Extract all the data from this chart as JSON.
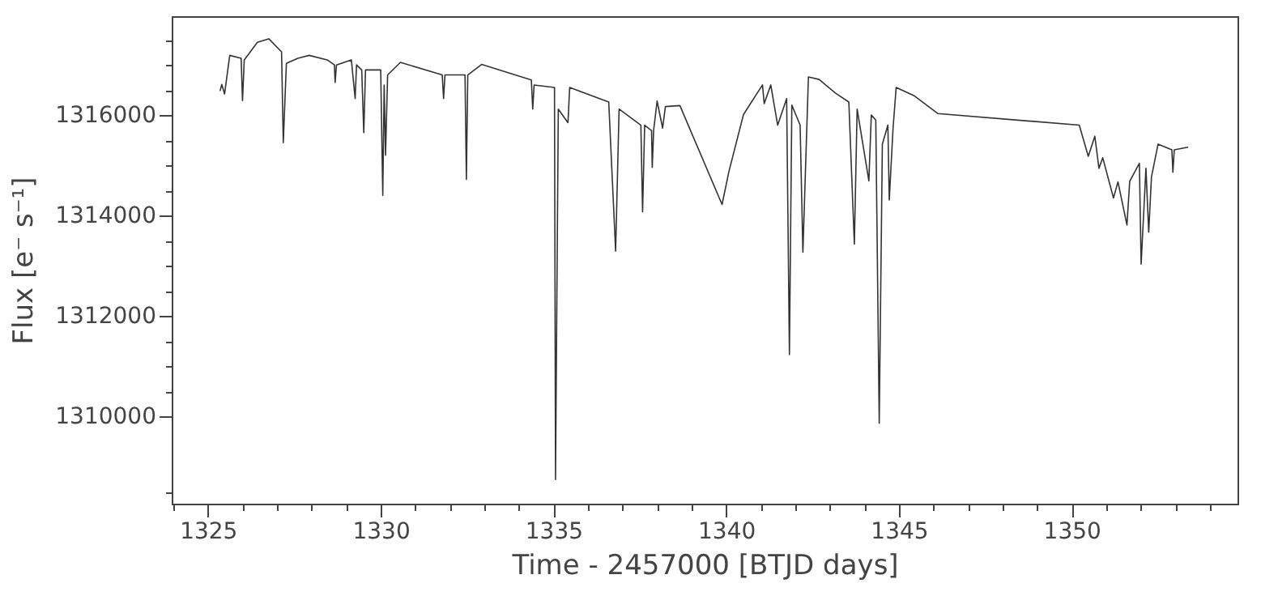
{
  "chart_data": {
    "type": "line",
    "xlabel": "Time - 2457000 [BTJD days]",
    "ylabel": "Flux [e⁻ s⁻¹]",
    "xlim": [
      1323.95,
      1354.8
    ],
    "ylim": [
      1308260,
      1317970
    ],
    "xticks": [
      {
        "value": 1324,
        "label": null
      },
      1325,
      {
        "value": 1326,
        "label": null
      },
      {
        "value": 1327,
        "label": null
      },
      {
        "value": 1328,
        "label": null
      },
      {
        "value": 1329,
        "label": null
      },
      1330,
      {
        "value": 1331,
        "label": null
      },
      {
        "value": 1332,
        "label": null
      },
      {
        "value": 1333,
        "label": null
      },
      {
        "value": 1334,
        "label": null
      },
      1335,
      {
        "value": 1336,
        "label": null
      },
      {
        "value": 1337,
        "label": null
      },
      {
        "value": 1338,
        "label": null
      },
      {
        "value": 1339,
        "label": null
      },
      1340,
      {
        "value": 1341,
        "label": null
      },
      {
        "value": 1342,
        "label": null
      },
      {
        "value": 1343,
        "label": null
      },
      {
        "value": 1344,
        "label": null
      },
      1345,
      {
        "value": 1346,
        "label": null
      },
      {
        "value": 1347,
        "label": null
      },
      {
        "value": 1348,
        "label": null
      },
      {
        "value": 1349,
        "label": null
      },
      1350,
      {
        "value": 1351,
        "label": null
      },
      {
        "value": 1352,
        "label": null
      },
      {
        "value": 1353,
        "label": null
      },
      {
        "value": 1354,
        "label": null
      }
    ],
    "yticks": [
      {
        "value": 1308500,
        "label": null
      },
      1310000,
      {
        "value": 1310500,
        "label": null
      },
      {
        "value": 1311000,
        "label": null
      },
      {
        "value": 1311500,
        "label": null
      },
      1312000,
      {
        "value": 1312500,
        "label": null
      },
      {
        "value": 1313000,
        "label": null
      },
      {
        "value": 1313500,
        "label": null
      },
      1314000,
      {
        "value": 1314500,
        "label": null
      },
      {
        "value": 1315000,
        "label": null
      },
      {
        "value": 1315500,
        "label": null
      },
      1316000,
      {
        "value": 1316500,
        "label": null
      },
      {
        "value": 1317000,
        "label": null
      },
      {
        "value": 1317500,
        "label": null
      }
    ],
    "grid": false,
    "marker": "none",
    "line_style": "solid",
    "series": [
      {
        "color": "#333333",
        "x": [
          1325.35,
          1325.4,
          1325.48,
          1325.63,
          1325.96,
          1326.0,
          1326.05,
          1326.43,
          1326.76,
          1327.13,
          1327.18,
          1327.27,
          1327.6,
          1327.93,
          1328.45,
          1328.66,
          1328.68,
          1328.72,
          1329.15,
          1329.26,
          1329.3,
          1329.45,
          1329.51,
          1329.56,
          1330.0,
          1330.06,
          1330.1,
          1330.14,
          1330.2,
          1330.57,
          1331.78,
          1331.82,
          1331.86,
          1332.44,
          1332.48,
          1332.52,
          1332.92,
          1334.36,
          1334.4,
          1334.44,
          1335.03,
          1335.06,
          1335.14,
          1335.42,
          1335.47,
          1336.6,
          1336.8,
          1336.9,
          1337.53,
          1337.58,
          1337.64,
          1337.84,
          1337.86,
          1337.9,
          1338.0,
          1338.16,
          1338.24,
          1338.66,
          1339.88,
          1340.08,
          1340.5,
          1341.05,
          1341.1,
          1341.29,
          1341.49,
          1341.75,
          1341.83,
          1341.9,
          1342.14,
          1342.22,
          1342.38,
          1342.69,
          1343.16,
          1343.55,
          1343.71,
          1343.79,
          1344.13,
          1344.2,
          1344.33,
          1344.43,
          1344.52,
          1344.68,
          1344.72,
          1344.83,
          1344.92,
          1345.43,
          1346.13,
          1350.22,
          1350.48,
          1350.67,
          1350.79,
          1350.9,
          1351.21,
          1351.34,
          1351.6,
          1351.68,
          1351.96,
          1352.01,
          1352.15,
          1352.23,
          1352.31,
          1352.5,
          1352.9,
          1352.93,
          1352.97,
          1353.37
        ],
        "values": [
          1316480,
          1316610,
          1316420,
          1317190,
          1317130,
          1316290,
          1317100,
          1317450,
          1317520,
          1317260,
          1315450,
          1317030,
          1317130,
          1317190,
          1317100,
          1317000,
          1316650,
          1317000,
          1317100,
          1316330,
          1317000,
          1316900,
          1315650,
          1316900,
          1316900,
          1314400,
          1316600,
          1315200,
          1316800,
          1317050,
          1316800,
          1316330,
          1316800,
          1316800,
          1314720,
          1316800,
          1317010,
          1316700,
          1316120,
          1316600,
          1316550,
          1308740,
          1316120,
          1315850,
          1316550,
          1316260,
          1313290,
          1316120,
          1315800,
          1314070,
          1315800,
          1315690,
          1314960,
          1315700,
          1316280,
          1315740,
          1316170,
          1316190,
          1314220,
          1314880,
          1316010,
          1316600,
          1316230,
          1316600,
          1315800,
          1316330,
          1311230,
          1316200,
          1315800,
          1313270,
          1316760,
          1316710,
          1316440,
          1316260,
          1313430,
          1316120,
          1314690,
          1316000,
          1315900,
          1309860,
          1315420,
          1315800,
          1314310,
          1315740,
          1316550,
          1316390,
          1316030,
          1315800,
          1315180,
          1315580,
          1314940,
          1315150,
          1314350,
          1314670,
          1313810,
          1314680,
          1315040,
          1313030,
          1314940,
          1313670,
          1314770,
          1315420,
          1315310,
          1314860,
          1315310,
          1315360
        ]
      }
    ]
  }
}
